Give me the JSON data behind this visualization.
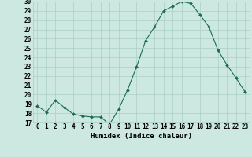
{
  "x": [
    0,
    1,
    2,
    3,
    4,
    5,
    6,
    7,
    8,
    9,
    10,
    11,
    12,
    13,
    14,
    15,
    16,
    17,
    18,
    19,
    20,
    21,
    22,
    23
  ],
  "y": [
    18.8,
    18.1,
    19.4,
    18.6,
    17.9,
    17.7,
    17.6,
    17.6,
    16.8,
    18.4,
    20.5,
    23.0,
    25.8,
    27.3,
    29.0,
    29.5,
    30.0,
    29.8,
    28.6,
    27.3,
    24.8,
    23.2,
    21.8,
    20.3
  ],
  "line_color": "#1a6b5a",
  "marker": "D",
  "marker_size": 2,
  "bg_color": "#cde8e0",
  "grid_color": "#aacfc5",
  "xlabel": "Humidex (Indice chaleur)",
  "ylim": [
    17,
    30
  ],
  "yticks": [
    17,
    18,
    19,
    20,
    21,
    22,
    23,
    24,
    25,
    26,
    27,
    28,
    29,
    30
  ],
  "xticks": [
    0,
    1,
    2,
    3,
    4,
    5,
    6,
    7,
    8,
    9,
    10,
    11,
    12,
    13,
    14,
    15,
    16,
    17,
    18,
    19,
    20,
    21,
    22,
    23
  ],
  "axis_fontsize": 6.5,
  "tick_fontsize": 5.5
}
